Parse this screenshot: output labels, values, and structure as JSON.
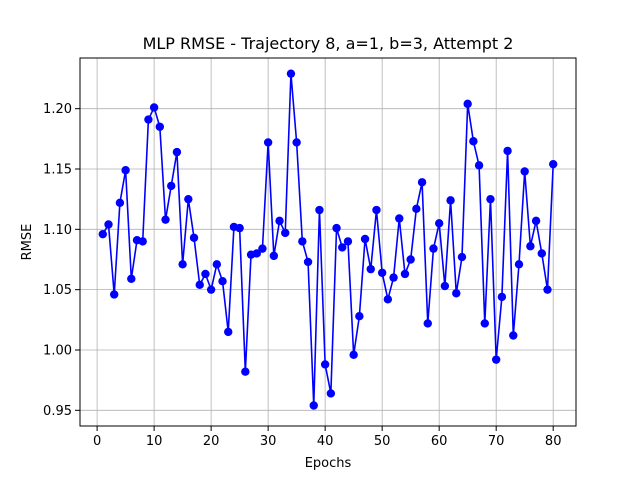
{
  "chart_data": {
    "type": "line",
    "title": "MLP RMSE - Trajectory 8, a=1, b=3, Attempt 2",
    "xlabel": "Epochs",
    "ylabel": "RMSE",
    "xlim": [
      -3,
      84
    ],
    "ylim": [
      0.937,
      1.242
    ],
    "xticks": [
      0,
      10,
      20,
      30,
      40,
      50,
      60,
      70,
      80
    ],
    "xtick_labels": [
      "0",
      "10",
      "20",
      "30",
      "40",
      "50",
      "60",
      "70",
      "80"
    ],
    "yticks": [
      0.95,
      1.0,
      1.05,
      1.1,
      1.15,
      1.2
    ],
    "ytick_labels": [
      "0.95",
      "1.00",
      "1.05",
      "1.10",
      "1.15",
      "1.20"
    ],
    "grid": true,
    "line_color": "#0000ff",
    "marker": "circle",
    "series": [
      {
        "x": [
          1,
          2,
          3,
          4,
          5,
          6,
          7,
          8,
          9,
          10,
          11,
          12,
          13,
          14,
          15,
          16,
          17,
          18,
          19,
          20,
          21,
          22,
          23,
          24,
          25,
          26,
          27,
          28,
          29,
          30,
          31,
          32,
          33,
          34,
          35,
          36,
          37,
          38,
          39,
          40,
          41,
          42,
          43,
          44,
          45,
          46,
          47,
          48,
          49,
          50,
          51,
          52,
          53,
          54,
          55,
          56,
          57,
          58,
          59,
          60,
          61,
          62,
          63,
          64,
          65,
          66,
          67,
          68,
          69,
          70,
          71,
          72,
          73,
          74,
          75,
          76,
          77,
          78,
          79,
          80
        ],
        "values": [
          1.096,
          1.104,
          1.046,
          1.122,
          1.149,
          1.059,
          1.091,
          1.09,
          1.191,
          1.201,
          1.185,
          1.108,
          1.136,
          1.164,
          1.071,
          1.125,
          1.093,
          1.054,
          1.063,
          1.05,
          1.071,
          1.057,
          1.015,
          1.102,
          1.101,
          0.982,
          1.079,
          1.08,
          1.084,
          1.172,
          1.078,
          1.107,
          1.097,
          1.229,
          1.172,
          1.09,
          1.073,
          0.954,
          1.116,
          0.988,
          0.964,
          1.101,
          1.085,
          1.09,
          0.996,
          1.028,
          1.092,
          1.067,
          1.116,
          1.064,
          1.042,
          1.06,
          1.109,
          1.063,
          1.075,
          1.117,
          1.139,
          1.022,
          1.084,
          1.105,
          1.053,
          1.124,
          1.047,
          1.077,
          1.204,
          1.173,
          1.153,
          1.022,
          1.125,
          0.992,
          1.044,
          1.165,
          1.012,
          1.071,
          1.148,
          1.086,
          1.107,
          1.08,
          1.05,
          1.154
        ]
      }
    ]
  }
}
